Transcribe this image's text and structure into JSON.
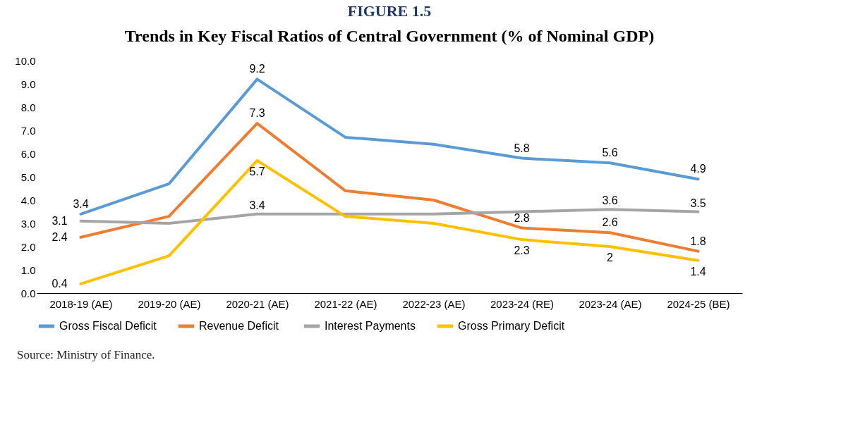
{
  "chart_data": {
    "type": "line",
    "title": "FIGURE 1.5",
    "subtitle": "Trends in Key Fiscal Ratios of Central Government (% of Nominal GDP)",
    "categories": [
      "2018-19 (AE)",
      "2019-20 (AE)",
      "2020-21 (AE)",
      "2021-22 (AE)",
      "2022-23 (AE)",
      "2023-24 (RE)",
      "2023-24 (AE)",
      "2024-25 (BE)"
    ],
    "series": [
      {
        "name": "Gross Fiscal Deficit",
        "color": "#5b9bd5",
        "values": [
          3.4,
          4.7,
          9.2,
          6.7,
          6.4,
          5.8,
          5.6,
          4.9
        ],
        "value_labels": [
          "3.4",
          null,
          "9.2",
          null,
          null,
          "5.8",
          "5.6",
          "4.9"
        ]
      },
      {
        "name": "Revenue  Deficit",
        "color": "#ed7d31",
        "values": [
          2.4,
          3.3,
          7.3,
          4.4,
          4.0,
          2.8,
          2.6,
          1.8
        ],
        "value_labels": [
          "2.4",
          null,
          "7.3",
          null,
          null,
          "2.8",
          "2.6",
          "1.8"
        ]
      },
      {
        "name": "Interest Payments",
        "color": "#a5a5a5",
        "values": [
          3.1,
          3.0,
          3.4,
          3.4,
          3.4,
          3.5,
          3.6,
          3.5
        ],
        "value_labels": [
          "3.1",
          null,
          "3.4",
          null,
          null,
          null,
          "3.6",
          "3.5"
        ]
      },
      {
        "name": "Gross Primary Deficit",
        "color": "#ffc000",
        "values": [
          0.4,
          1.6,
          5.7,
          3.3,
          3.0,
          2.3,
          2.0,
          1.4
        ],
        "value_labels": [
          "0.4",
          null,
          "5.7",
          null,
          null,
          "2.3",
          "2",
          "1.4"
        ]
      }
    ],
    "ylim": [
      0,
      10
    ],
    "yticks": [
      {
        "value": 0,
        "label": "0.0"
      },
      {
        "value": 1,
        "label": "1.0"
      },
      {
        "value": 2,
        "label": "2.0"
      },
      {
        "value": 3,
        "label": "3.0"
      },
      {
        "value": 4,
        "label": "4.0"
      },
      {
        "value": 5,
        "label": "5.0"
      },
      {
        "value": 6,
        "label": "6.0"
      },
      {
        "value": 7,
        "label": "7.0"
      },
      {
        "value": 8,
        "label": "8.0"
      },
      {
        "value": 9,
        "label": "9.0"
      },
      {
        "value": 10,
        "label": "10.0"
      }
    ],
    "grid": false,
    "legend": "bottom",
    "marker": "none",
    "line_style": "solid",
    "annotations": [
      "Source:    Ministry of Finance."
    ]
  }
}
